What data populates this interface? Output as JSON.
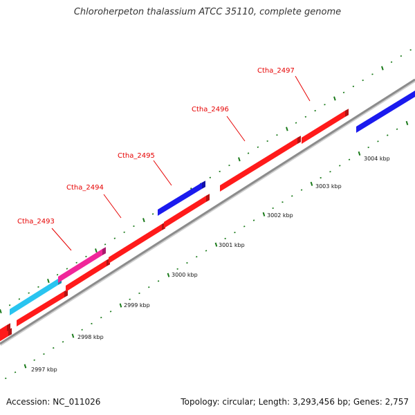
{
  "header": {
    "title": "Chloroherpeton thalassium ATCC 35110, complete genome"
  },
  "footer": {
    "accession": "Accession: NC_011026",
    "summary": "Topology: circular; Length: 3,293,456 bp; Genes: 2,757"
  },
  "genome_map": {
    "backbone_color": "#999999",
    "tick_color": "#1a7a1a",
    "kbp_labels": [
      "2997 kbp",
      "2998 kbp",
      "2999 kbp",
      "3000 kbp",
      "3001 kbp",
      "3002 kbp",
      "3003 kbp",
      "3004 kbp"
    ],
    "gene_labels": [
      "Ctha_2493",
      "Ctha_2494",
      "Ctha_2495",
      "Ctha_2496",
      "Ctha_2497"
    ],
    "features": [
      {
        "color": "#ff1a1a"
      },
      {
        "color": "#ff1a1a"
      },
      {
        "color": "#ff1a1a"
      },
      {
        "color": "#ff1a1a"
      },
      {
        "color": "#ff1a1a"
      },
      {
        "color": "#ff1a1a"
      },
      {
        "color": "#ff1a1a"
      },
      {
        "color": "#ff1a1a"
      },
      {
        "color": "#29c4f0"
      },
      {
        "color": "#f0269a"
      },
      {
        "color": "#1a1aee"
      },
      {
        "color": "#1a1aee"
      }
    ]
  }
}
